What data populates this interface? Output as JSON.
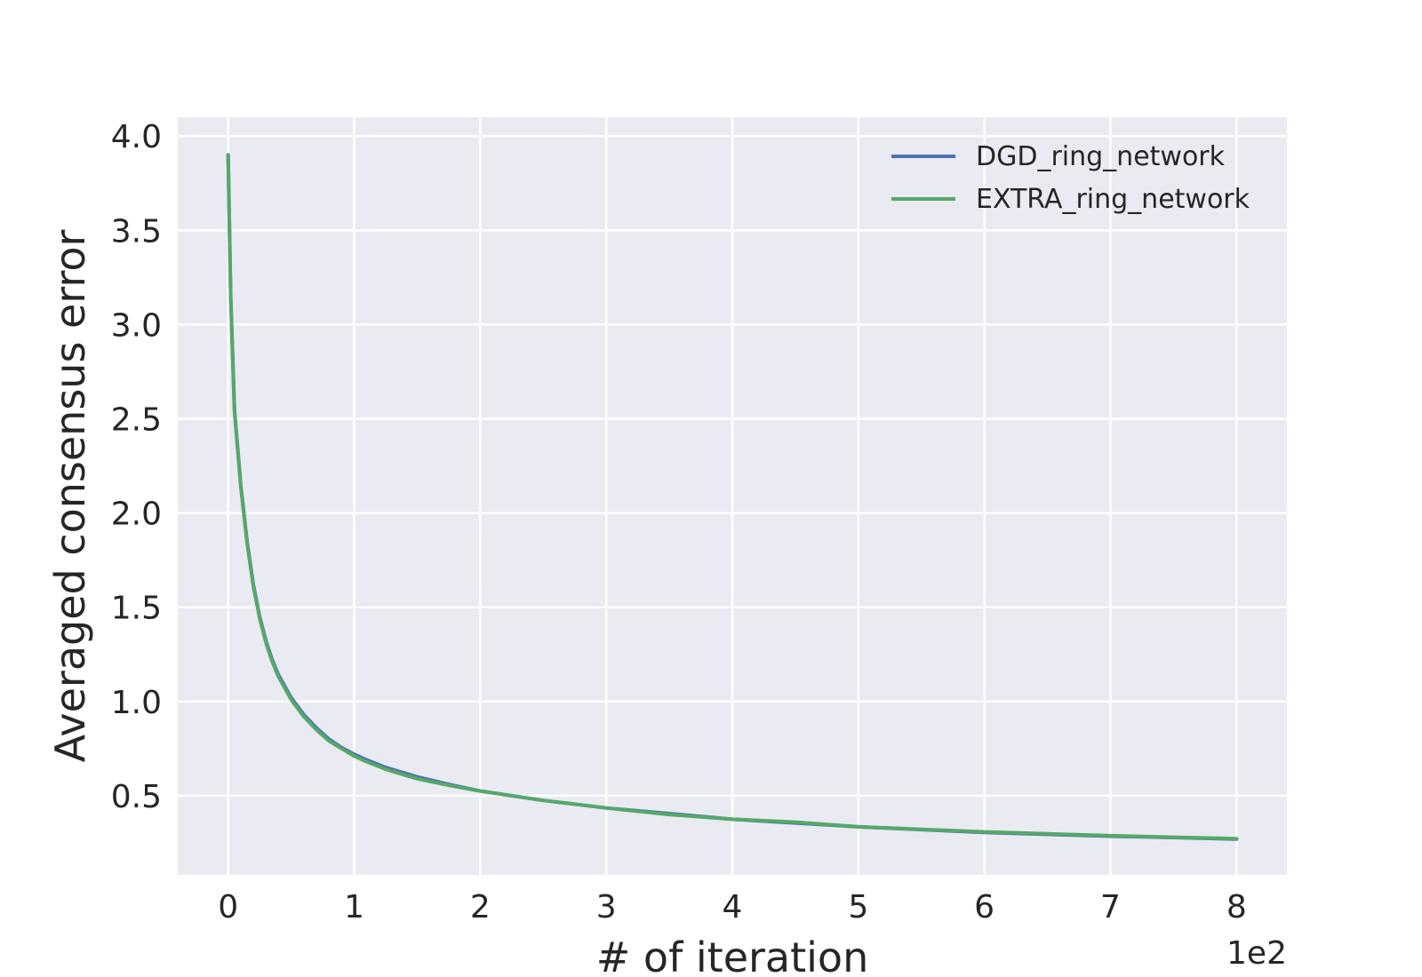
{
  "chart_data": {
    "type": "line",
    "title": "",
    "xlabel": "# of iteration",
    "ylabel": "Averaged consensus error",
    "x_offset_label": "1e2",
    "xlim": [
      -0.4,
      8.4
    ],
    "ylim": [
      0.08,
      4.1
    ],
    "xticks": [
      0,
      1,
      2,
      3,
      4,
      5,
      6,
      7,
      8
    ],
    "xtick_labels": [
      "0",
      "1",
      "2",
      "3",
      "4",
      "5",
      "6",
      "7",
      "8"
    ],
    "yticks": [
      0.5,
      1.0,
      1.5,
      2.0,
      2.5,
      3.0,
      3.5,
      4.0
    ],
    "ytick_labels": [
      "0.5",
      "1.0",
      "1.5",
      "2.0",
      "2.5",
      "3.0",
      "3.5",
      "4.0"
    ],
    "grid": true,
    "legend_position": "top-right",
    "x": [
      0,
      0.02,
      0.05,
      0.1,
      0.15,
      0.2,
      0.25,
      0.3,
      0.35,
      0.4,
      0.5,
      0.6,
      0.7,
      0.8,
      0.9,
      1.0,
      1.1,
      1.25,
      1.5,
      1.75,
      2.0,
      2.5,
      3.0,
      3.5,
      4.0,
      4.5,
      5.0,
      5.5,
      6.0,
      6.5,
      7.0,
      7.5,
      8.0
    ],
    "series": [
      {
        "name": "DGD_ring_network",
        "color": "#4c72b0",
        "values": [
          3.9,
          3.15,
          2.55,
          2.15,
          1.85,
          1.62,
          1.45,
          1.32,
          1.22,
          1.14,
          1.02,
          0.93,
          0.86,
          0.8,
          0.755,
          0.72,
          0.69,
          0.65,
          0.6,
          0.56,
          0.525,
          0.475,
          0.435,
          0.405,
          0.375,
          0.355,
          0.335,
          0.32,
          0.305,
          0.295,
          0.285,
          0.278,
          0.27
        ]
      },
      {
        "name": "EXTRA_ring_network",
        "color": "#55a868",
        "values": [
          3.9,
          3.14,
          2.54,
          2.14,
          1.84,
          1.61,
          1.44,
          1.31,
          1.21,
          1.13,
          1.01,
          0.92,
          0.85,
          0.79,
          0.75,
          0.71,
          0.68,
          0.64,
          0.59,
          0.555,
          0.525,
          0.475,
          0.435,
          0.4,
          0.375,
          0.36,
          0.335,
          0.322,
          0.308,
          0.298,
          0.288,
          0.28,
          0.272
        ]
      }
    ]
  }
}
